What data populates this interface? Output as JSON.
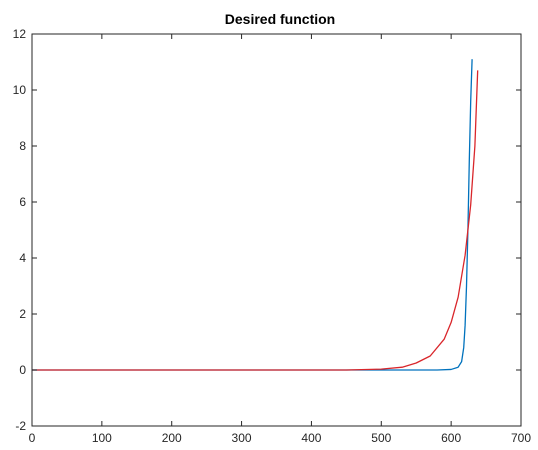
{
  "chart_data": {
    "type": "line",
    "title": "Desired function",
    "xlabel": "",
    "ylabel": "",
    "xlim": [
      0,
      700
    ],
    "ylim": [
      -2,
      12
    ],
    "xticks": [
      0,
      100,
      200,
      300,
      400,
      500,
      600,
      700
    ],
    "yticks": [
      -2,
      0,
      2,
      4,
      6,
      8,
      10,
      12
    ],
    "grid": false,
    "legend": "none",
    "series": [
      {
        "color": "#0072BD",
        "x": [
          0,
          500,
          550,
          580,
          600,
          610,
          615,
          618,
          620,
          622,
          624,
          626,
          628,
          630
        ],
        "y": [
          0,
          0,
          0,
          0,
          0.02,
          0.1,
          0.3,
          0.8,
          1.6,
          3.0,
          5.0,
          7.5,
          9.6,
          11.1
        ]
      },
      {
        "color": "#D9262B",
        "x": [
          0,
          450,
          500,
          530,
          550,
          570,
          590,
          600,
          610,
          620,
          628,
          634,
          638
        ],
        "y": [
          0,
          0,
          0.03,
          0.1,
          0.25,
          0.5,
          1.1,
          1.7,
          2.6,
          4.1,
          5.9,
          8.0,
          10.7
        ]
      }
    ]
  }
}
